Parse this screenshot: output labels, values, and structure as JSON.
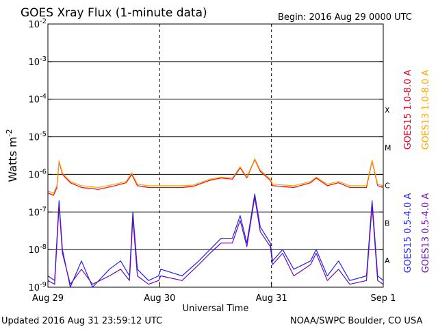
{
  "header": {
    "title": "GOES Xray Flux (1-minute data)",
    "begin": "Begin:  2016 Aug 29 0000 UTC"
  },
  "footer": {
    "updated": "Updated 2016 Aug 31 23:59:12 UTC",
    "source": "NOAA/SWPC Boulder, CO USA"
  },
  "chart_data": {
    "type": "line",
    "title": "GOES Xray Flux (1-minute data)",
    "xlabel": "Universal Time",
    "ylabel_main": "Watts m",
    "ylabel_exp": "-2",
    "yscale": "log",
    "ylim": [
      1e-09,
      0.01
    ],
    "y_ticks": [
      {
        "value": 0.01,
        "mant": "10",
        "exp": "-2"
      },
      {
        "value": 0.001,
        "mant": "10",
        "exp": "-3"
      },
      {
        "value": 0.0001,
        "mant": "10",
        "exp": "-4"
      },
      {
        "value": 1e-05,
        "mant": "10",
        "exp": "-5"
      },
      {
        "value": 1e-06,
        "mant": "10",
        "exp": "-6"
      },
      {
        "value": 1e-07,
        "mant": "10",
        "exp": "-7"
      },
      {
        "value": 1e-08,
        "mant": "10",
        "exp": "-8"
      },
      {
        "value": 1e-09,
        "mant": "10",
        "exp": "-9"
      }
    ],
    "x_range_days": [
      0,
      3
    ],
    "x_ticks": [
      {
        "day": 0,
        "label": "Aug 29"
      },
      {
        "day": 1,
        "label": "Aug 30"
      },
      {
        "day": 2,
        "label": "Aug 31"
      },
      {
        "day": 3,
        "label": "Sep 1"
      }
    ],
    "flare_classes": [
      {
        "label": "X",
        "value": 0.0001
      },
      {
        "label": "M",
        "value": 1e-05
      },
      {
        "label": "C",
        "value": 1e-06
      },
      {
        "label": "B",
        "value": 1e-07
      },
      {
        "label": "A",
        "value": 1e-08
      }
    ],
    "grid": true,
    "legend_position": "right",
    "series": [
      {
        "name": "GOES15 1.0-8.0 A",
        "color": "#e8001c",
        "points": [
          [
            0,
            3.2e-07
          ],
          [
            0.05,
            2.8e-07
          ],
          [
            0.08,
            4.5e-07
          ],
          [
            0.1,
            2.2e-06
          ],
          [
            0.13,
            1e-06
          ],
          [
            0.2,
            6e-07
          ],
          [
            0.3,
            4.5e-07
          ],
          [
            0.45,
            4e-07
          ],
          [
            0.6,
            5e-07
          ],
          [
            0.7,
            6e-07
          ],
          [
            0.75,
            1e-06
          ],
          [
            0.8,
            5e-07
          ],
          [
            0.9,
            4.5e-07
          ],
          [
            0.99,
            4.5e-07
          ],
          [
            1.01,
            4.5e-07
          ],
          [
            1.2,
            4.5e-07
          ],
          [
            1.3,
            4.8e-07
          ],
          [
            1.45,
            7e-07
          ],
          [
            1.55,
            8e-07
          ],
          [
            1.65,
            7.5e-07
          ],
          [
            1.72,
            1.5e-06
          ],
          [
            1.78,
            8e-07
          ],
          [
            1.85,
            2.5e-06
          ],
          [
            1.9,
            1.2e-06
          ],
          [
            1.99,
            7e-07
          ],
          [
            2.01,
            5e-07
          ],
          [
            2.2,
            4.5e-07
          ],
          [
            2.35,
            6e-07
          ],
          [
            2.4,
            8e-07
          ],
          [
            2.5,
            5e-07
          ],
          [
            2.6,
            6e-07
          ],
          [
            2.7,
            4.5e-07
          ],
          [
            2.85,
            4.5e-07
          ],
          [
            2.9,
            2.3e-06
          ],
          [
            2.95,
            5e-07
          ],
          [
            3.0,
            4.5e-07
          ]
        ]
      },
      {
        "name": "GOES13 1.0-8.0 A",
        "color": "#ffa500",
        "points": [
          [
            0,
            3.6e-07
          ],
          [
            0.05,
            3.2e-07
          ],
          [
            0.08,
            5e-07
          ],
          [
            0.1,
            2.3e-06
          ],
          [
            0.13,
            1.1e-06
          ],
          [
            0.2,
            6.5e-07
          ],
          [
            0.3,
            5e-07
          ],
          [
            0.45,
            4.5e-07
          ],
          [
            0.6,
            5.5e-07
          ],
          [
            0.7,
            6.5e-07
          ],
          [
            0.75,
            1.1e-06
          ],
          [
            0.8,
            5.5e-07
          ],
          [
            0.9,
            5e-07
          ],
          [
            0.99,
            5e-07
          ],
          [
            1.01,
            5e-07
          ],
          [
            1.2,
            5e-07
          ],
          [
            1.3,
            5.2e-07
          ],
          [
            1.45,
            7.5e-07
          ],
          [
            1.55,
            8.5e-07
          ],
          [
            1.65,
            8e-07
          ],
          [
            1.72,
            1.6e-06
          ],
          [
            1.78,
            8.5e-07
          ],
          [
            1.85,
            2.6e-06
          ],
          [
            1.9,
            1.3e-06
          ],
          [
            1.99,
            7.5e-07
          ],
          [
            2.01,
            5.5e-07
          ],
          [
            2.2,
            5e-07
          ],
          [
            2.35,
            6.5e-07
          ],
          [
            2.4,
            8.5e-07
          ],
          [
            2.5,
            5.5e-07
          ],
          [
            2.6,
            6.5e-07
          ],
          [
            2.7,
            5e-07
          ],
          [
            2.85,
            5e-07
          ],
          [
            2.9,
            2.4e-06
          ],
          [
            2.95,
            5.5e-07
          ],
          [
            3.0,
            5e-07
          ]
        ]
      },
      {
        "name": "GOES15 0.5-4.0 A",
        "color": "#1f1fff",
        "points": [
          [
            0,
            2e-09
          ],
          [
            0.06,
            1.5e-09
          ],
          [
            0.1,
            2e-07
          ],
          [
            0.13,
            1e-08
          ],
          [
            0.2,
            1e-09
          ],
          [
            0.3,
            5e-09
          ],
          [
            0.4,
            1e-09
          ],
          [
            0.55,
            3e-09
          ],
          [
            0.65,
            5e-09
          ],
          [
            0.73,
            2e-09
          ],
          [
            0.76,
            1e-07
          ],
          [
            0.8,
            3e-09
          ],
          [
            0.9,
            1.5e-09
          ],
          [
            0.99,
            2e-09
          ],
          [
            1.01,
            3e-09
          ],
          [
            1.2,
            2e-09
          ],
          [
            1.35,
            5e-09
          ],
          [
            1.45,
            1e-08
          ],
          [
            1.55,
            2e-08
          ],
          [
            1.65,
            2e-08
          ],
          [
            1.72,
            8e-08
          ],
          [
            1.78,
            1.5e-08
          ],
          [
            1.85,
            3e-07
          ],
          [
            1.9,
            4e-08
          ],
          [
            1.99,
            1.5e-08
          ],
          [
            2.01,
            5e-09
          ],
          [
            2.1,
            1e-08
          ],
          [
            2.2,
            3e-09
          ],
          [
            2.35,
            5e-09
          ],
          [
            2.4,
            1e-08
          ],
          [
            2.5,
            2e-09
          ],
          [
            2.6,
            5e-09
          ],
          [
            2.7,
            1.5e-09
          ],
          [
            2.85,
            2e-09
          ],
          [
            2.9,
            2e-07
          ],
          [
            2.95,
            2e-09
          ],
          [
            3.0,
            1.5e-09
          ]
        ]
      },
      {
        "name": "GOES13 0.5-4.0 A",
        "color": "#6a0dad",
        "points": [
          [
            0,
            1.5e-09
          ],
          [
            0.06,
            1.2e-09
          ],
          [
            0.1,
            1.5e-07
          ],
          [
            0.13,
            8e-09
          ],
          [
            0.2,
            1.2e-09
          ],
          [
            0.3,
            3e-09
          ],
          [
            0.4,
            1.2e-09
          ],
          [
            0.55,
            2e-09
          ],
          [
            0.65,
            3e-09
          ],
          [
            0.73,
            1.5e-09
          ],
          [
            0.76,
            7e-08
          ],
          [
            0.8,
            2e-09
          ],
          [
            0.9,
            1.2e-09
          ],
          [
            0.99,
            1.5e-09
          ],
          [
            1.01,
            2e-09
          ],
          [
            1.2,
            1.5e-09
          ],
          [
            1.35,
            4e-09
          ],
          [
            1.45,
            8e-09
          ],
          [
            1.55,
            1.5e-08
          ],
          [
            1.65,
            1.5e-08
          ],
          [
            1.72,
            6e-08
          ],
          [
            1.78,
            1.2e-08
          ],
          [
            1.85,
            2.5e-07
          ],
          [
            1.9,
            3e-08
          ],
          [
            1.99,
            1.2e-08
          ],
          [
            2.01,
            4e-09
          ],
          [
            2.1,
            8e-09
          ],
          [
            2.2,
            2e-09
          ],
          [
            2.35,
            4e-09
          ],
          [
            2.4,
            8e-09
          ],
          [
            2.5,
            1.5e-09
          ],
          [
            2.6,
            3e-09
          ],
          [
            2.7,
            1.2e-09
          ],
          [
            2.85,
            1.5e-09
          ],
          [
            2.9,
            1.5e-07
          ],
          [
            2.95,
            1.5e-09
          ],
          [
            3.0,
            1.2e-09
          ]
        ]
      }
    ]
  }
}
